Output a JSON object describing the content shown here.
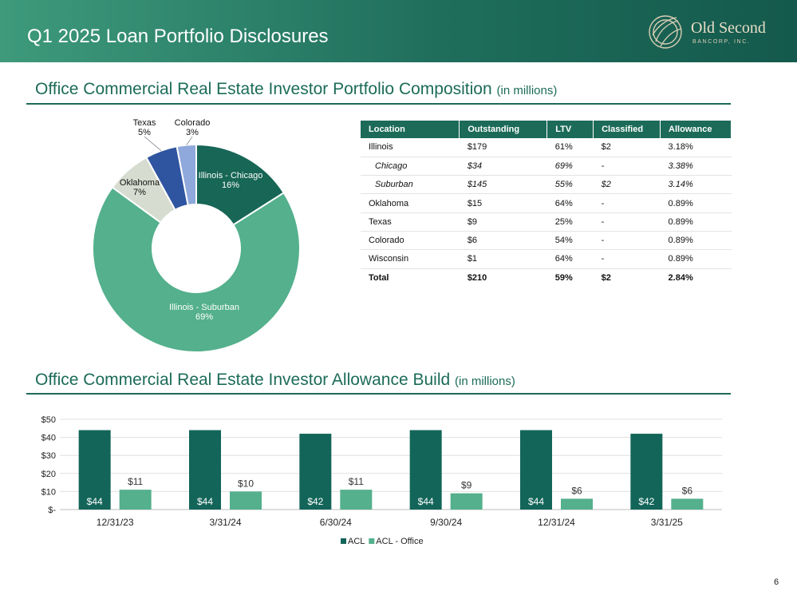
{
  "header": {
    "title": "Q1 2025 Loan Portfolio Disclosures"
  },
  "logo": {
    "name": "Old Second",
    "sub": "BANCORP, INC."
  },
  "section1": {
    "title": "Office Commercial Real Estate Investor Portfolio Composition",
    "unit": "(in millions)"
  },
  "section2": {
    "title": "Office Commercial Real Estate Investor Allowance Build",
    "unit": "(in millions)"
  },
  "table": {
    "headers": [
      "Location",
      "Outstanding",
      "LTV",
      "Classified",
      "Allowance"
    ],
    "rows": [
      {
        "cells": [
          "Illinois",
          "$179",
          "61%",
          "$2",
          "3.18%"
        ],
        "style": "normal"
      },
      {
        "cells": [
          "Chicago",
          "$34",
          "69%",
          "-",
          "3.38%"
        ],
        "style": "sub"
      },
      {
        "cells": [
          "Suburban",
          "$145",
          "55%",
          "$2",
          "3.14%"
        ],
        "style": "sub"
      },
      {
        "cells": [
          "Oklahoma",
          "$15",
          "64%",
          "-",
          "0.89%"
        ],
        "style": "normal"
      },
      {
        "cells": [
          "Texas",
          "$9",
          "25%",
          "-",
          "0.89%"
        ],
        "style": "normal"
      },
      {
        "cells": [
          "Colorado",
          "$6",
          "54%",
          "-",
          "0.89%"
        ],
        "style": "normal"
      },
      {
        "cells": [
          "Wisconsin",
          "$1",
          "64%",
          "-",
          "0.89%"
        ],
        "style": "normal"
      },
      {
        "cells": [
          "Total",
          "$210",
          "59%",
          "$2",
          "2.84%"
        ],
        "style": "total"
      }
    ]
  },
  "page_number": "6",
  "chart_data": [
    {
      "type": "pie",
      "donut": true,
      "slices": [
        {
          "label": "Illinois - Chicago",
          "value": 16,
          "value_label": "16%",
          "color": "#176656"
        },
        {
          "label": "Illinois - Suburban",
          "value": 69,
          "value_label": "69%",
          "color": "#54b08d"
        },
        {
          "label": "Oklahoma",
          "value": 7,
          "value_label": "7%",
          "color": "#d6ddd0"
        },
        {
          "label": "Texas",
          "value": 5,
          "value_label": "5%",
          "color": "#2f55a0"
        },
        {
          "label": "Colorado",
          "value": 3,
          "value_label": "3%",
          "color": "#8fa9dc"
        }
      ]
    },
    {
      "type": "bar",
      "categories": [
        "12/31/23",
        "3/31/24",
        "6/30/24",
        "9/30/24",
        "12/31/24",
        "3/31/25"
      ],
      "series": [
        {
          "name": "ACL",
          "values": [
            44,
            44,
            42,
            44,
            44,
            42
          ],
          "labels": [
            "$44",
            "$44",
            "$42",
            "$44",
            "$44",
            "$42"
          ],
          "color": "#136559"
        },
        {
          "name": "ACL - Office",
          "values": [
            11,
            10,
            11,
            9,
            6,
            6
          ],
          "labels": [
            "$11",
            "$10",
            "$11",
            "$9",
            "$6",
            "$6"
          ],
          "color": "#54b08d"
        }
      ],
      "ylim": [
        0,
        50
      ],
      "yticks": [
        0,
        10,
        20,
        30,
        40,
        50
      ],
      "ytick_labels": [
        "$-",
        "$10",
        "$20",
        "$30",
        "$40",
        "$50"
      ],
      "grid": true,
      "legend": "bottom"
    }
  ]
}
